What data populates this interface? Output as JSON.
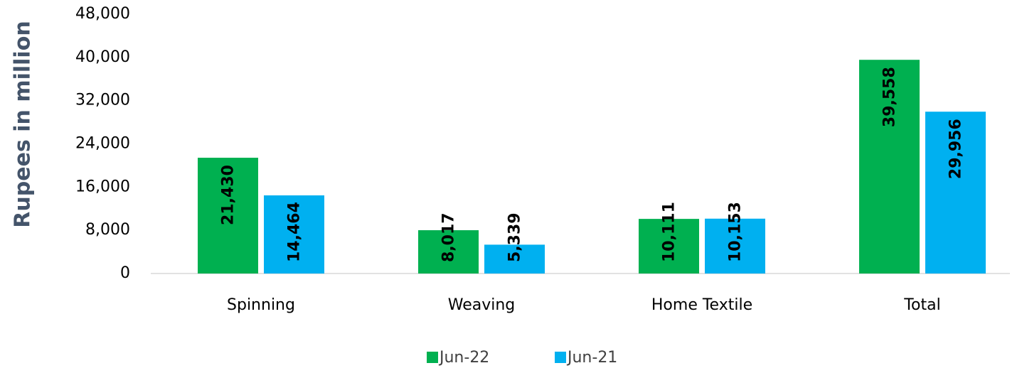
{
  "chart_data": {
    "type": "bar",
    "y_axis_label": "Rupees in million",
    "categories": [
      "Spinning",
      "Weaving",
      "Home Textile",
      "Total"
    ],
    "series": [
      {
        "name": "Jun-22",
        "color": "#00b050",
        "values": [
          21430,
          8017,
          10111,
          39558
        ],
        "value_labels": [
          "21,430",
          "8,017",
          "10,111",
          "39,558"
        ]
      },
      {
        "name": "Jun-21",
        "color": "#00b0f0",
        "values": [
          14464,
          5339,
          10153,
          29956
        ],
        "value_labels": [
          "14,464",
          "5,339",
          "10,153",
          "29,956"
        ]
      }
    ],
    "ylim": [
      0,
      48000
    ],
    "yticks": [
      0,
      {
        "value": 8000,
        "label": "8,000"
      },
      {
        "value": 16000,
        "label": "16,000"
      },
      {
        "value": 24000,
        "label": "24,000"
      },
      {
        "value": 32000,
        "label": "32,000"
      },
      {
        "value": 40000,
        "label": "40,000"
      },
      {
        "value": 48000,
        "label": "48,000"
      }
    ],
    "grid": false,
    "legend": "bottom"
  }
}
